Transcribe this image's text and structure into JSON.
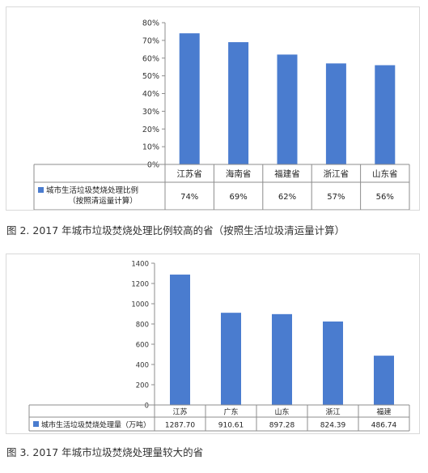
{
  "captions": {
    "figure2": "图 2. 2017 年城市垃圾焚烧处理比例较高的省（按照生活垃圾清运量计算）",
    "figure3": "图 3. 2017 年城市垃圾焚烧处理量较大的省"
  },
  "colors": {
    "bar": "#4a7ccf",
    "grid": "#cfcfcf",
    "axis": "#8c8c8c"
  },
  "chart_data": [
    {
      "type": "bar",
      "categories": [
        "江苏省",
        "海南省",
        "福建省",
        "浙江省",
        "山东省"
      ],
      "series": [
        {
          "name": "城市生活垃圾焚烧处理比例（按照清运量计算）",
          "legend_lines": [
            "城市生活垃圾焚烧处理比例",
            "（按照清运量计算）"
          ],
          "values": [
            74,
            69,
            62,
            57,
            56
          ],
          "labels": [
            "74%",
            "69%",
            "62%",
            "57%",
            "56%"
          ]
        }
      ],
      "yticks": [
        "0%",
        "10%",
        "20%",
        "30%",
        "40%",
        "50%",
        "60%",
        "70%",
        "80%"
      ],
      "ylim": [
        0,
        80
      ],
      "grid": false,
      "data_table": true
    },
    {
      "type": "bar",
      "categories": [
        "江苏",
        "广东",
        "山东",
        "浙江",
        "福建"
      ],
      "series": [
        {
          "name": "城市生活垃圾焚烧处理量（万吨）",
          "legend_lines": [
            "城市生活垃圾焚烧处理量（万吨）"
          ],
          "values": [
            1287.7,
            910.61,
            897.28,
            824.39,
            486.74
          ],
          "labels": [
            "1287.70",
            "910.61",
            "897.28",
            "824.39",
            "486.74"
          ]
        }
      ],
      "yticks": [
        "0",
        "200",
        "400",
        "600",
        "800",
        "1000",
        "1200",
        "1400"
      ],
      "ylim": [
        0,
        1400
      ],
      "grid": false,
      "data_table": true
    }
  ]
}
